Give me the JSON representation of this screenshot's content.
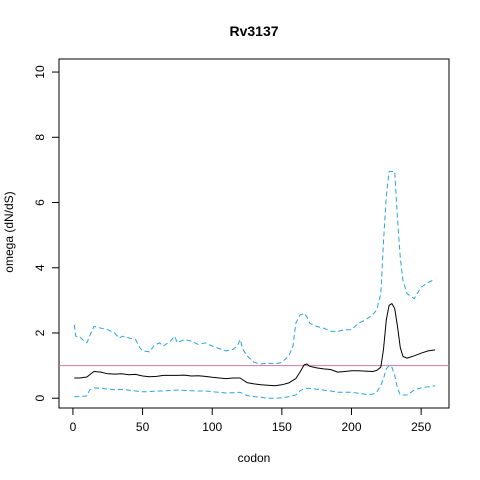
{
  "chart_data": {
    "type": "line",
    "title": "Rv3137",
    "xlabel": "codon",
    "ylabel": "omega (dN/dS)",
    "xlim": [
      -10,
      270
    ],
    "ylim": [
      -0.3,
      10.4
    ],
    "x_ticks": [
      0,
      50,
      100,
      150,
      200,
      250
    ],
    "y_ticks": [
      0,
      2,
      4,
      6,
      8,
      10
    ],
    "grid": false,
    "reference_line": {
      "y": 1,
      "color": "#cc79a7"
    },
    "series": [
      {
        "style": "solid",
        "color": "#000000",
        "points": [
          [
            1,
            0.62
          ],
          [
            5,
            0.62
          ],
          [
            10,
            0.65
          ],
          [
            15,
            0.82
          ],
          [
            20,
            0.8
          ],
          [
            25,
            0.75
          ],
          [
            30,
            0.74
          ],
          [
            35,
            0.75
          ],
          [
            40,
            0.72
          ],
          [
            45,
            0.73
          ],
          [
            50,
            0.68
          ],
          [
            55,
            0.66
          ],
          [
            60,
            0.67
          ],
          [
            65,
            0.7
          ],
          [
            70,
            0.7
          ],
          [
            75,
            0.7
          ],
          [
            80,
            0.71
          ],
          [
            85,
            0.68
          ],
          [
            90,
            0.69
          ],
          [
            95,
            0.67
          ],
          [
            100,
            0.64
          ],
          [
            105,
            0.62
          ],
          [
            110,
            0.6
          ],
          [
            115,
            0.62
          ],
          [
            120,
            0.62
          ],
          [
            125,
            0.48
          ],
          [
            130,
            0.44
          ],
          [
            135,
            0.41
          ],
          [
            140,
            0.4
          ],
          [
            145,
            0.38
          ],
          [
            150,
            0.41
          ],
          [
            155,
            0.47
          ],
          [
            160,
            0.6
          ],
          [
            163,
            0.8
          ],
          [
            166,
            1.02
          ],
          [
            168,
            1.05
          ],
          [
            170,
            0.98
          ],
          [
            175,
            0.93
          ],
          [
            180,
            0.9
          ],
          [
            185,
            0.88
          ],
          [
            190,
            0.8
          ],
          [
            195,
            0.82
          ],
          [
            200,
            0.84
          ],
          [
            205,
            0.84
          ],
          [
            210,
            0.83
          ],
          [
            215,
            0.82
          ],
          [
            218,
            0.85
          ],
          [
            221,
            0.95
          ],
          [
            223,
            1.5
          ],
          [
            225,
            2.4
          ],
          [
            227,
            2.85
          ],
          [
            229,
            2.9
          ],
          [
            231,
            2.75
          ],
          [
            233,
            2.2
          ],
          [
            235,
            1.55
          ],
          [
            237,
            1.28
          ],
          [
            240,
            1.23
          ],
          [
            245,
            1.3
          ],
          [
            250,
            1.38
          ],
          [
            255,
            1.45
          ],
          [
            260,
            1.48
          ]
        ]
      },
      {
        "style": "dashed",
        "color": "#29a3e6",
        "points": [
          [
            1,
            2.25
          ],
          [
            2,
            1.9
          ],
          [
            5,
            1.88
          ],
          [
            8,
            1.75
          ],
          [
            10,
            1.7
          ],
          [
            12,
            1.9
          ],
          [
            15,
            2.2
          ],
          [
            20,
            2.15
          ],
          [
            25,
            2.1
          ],
          [
            30,
            2.0
          ],
          [
            33,
            1.85
          ],
          [
            36,
            1.9
          ],
          [
            40,
            1.85
          ],
          [
            45,
            1.8
          ],
          [
            48,
            1.55
          ],
          [
            50,
            1.45
          ],
          [
            55,
            1.42
          ],
          [
            58,
            1.6
          ],
          [
            62,
            1.7
          ],
          [
            65,
            1.6
          ],
          [
            70,
            1.75
          ],
          [
            73,
            1.9
          ],
          [
            75,
            1.7
          ],
          [
            80,
            1.8
          ],
          [
            85,
            1.75
          ],
          [
            90,
            1.65
          ],
          [
            95,
            1.7
          ],
          [
            100,
            1.6
          ],
          [
            105,
            1.52
          ],
          [
            110,
            1.45
          ],
          [
            115,
            1.5
          ],
          [
            118,
            1.6
          ],
          [
            120,
            1.8
          ],
          [
            122,
            1.5
          ],
          [
            125,
            1.3
          ],
          [
            130,
            1.1
          ],
          [
            135,
            1.05
          ],
          [
            140,
            1.08
          ],
          [
            145,
            1.05
          ],
          [
            150,
            1.1
          ],
          [
            155,
            1.3
          ],
          [
            158,
            1.6
          ],
          [
            160,
            2.3
          ],
          [
            163,
            2.55
          ],
          [
            166,
            2.6
          ],
          [
            168,
            2.5
          ],
          [
            170,
            2.3
          ],
          [
            175,
            2.2
          ],
          [
            180,
            2.15
          ],
          [
            185,
            2.05
          ],
          [
            190,
            2.05
          ],
          [
            195,
            2.1
          ],
          [
            200,
            2.1
          ],
          [
            205,
            2.3
          ],
          [
            210,
            2.4
          ],
          [
            215,
            2.55
          ],
          [
            218,
            2.7
          ],
          [
            221,
            3.2
          ],
          [
            223,
            4.8
          ],
          [
            225,
            6.2
          ],
          [
            227,
            6.95
          ],
          [
            231,
            6.95
          ],
          [
            233,
            5.5
          ],
          [
            235,
            4.3
          ],
          [
            237,
            3.6
          ],
          [
            240,
            3.2
          ],
          [
            245,
            3.05
          ],
          [
            250,
            3.4
          ],
          [
            255,
            3.55
          ],
          [
            260,
            3.65
          ]
        ]
      },
      {
        "style": "dashed",
        "color": "#29a3e6",
        "points": [
          [
            1,
            0.05
          ],
          [
            5,
            0.05
          ],
          [
            10,
            0.07
          ],
          [
            12,
            0.25
          ],
          [
            15,
            0.32
          ],
          [
            20,
            0.3
          ],
          [
            25,
            0.28
          ],
          [
            30,
            0.26
          ],
          [
            35,
            0.27
          ],
          [
            40,
            0.25
          ],
          [
            45,
            0.22
          ],
          [
            50,
            0.2
          ],
          [
            55,
            0.2
          ],
          [
            60,
            0.22
          ],
          [
            65,
            0.22
          ],
          [
            70,
            0.24
          ],
          [
            75,
            0.25
          ],
          [
            80,
            0.24
          ],
          [
            85,
            0.23
          ],
          [
            90,
            0.22
          ],
          [
            95,
            0.22
          ],
          [
            100,
            0.2
          ],
          [
            105,
            0.18
          ],
          [
            110,
            0.16
          ],
          [
            115,
            0.17
          ],
          [
            120,
            0.18
          ],
          [
            125,
            0.08
          ],
          [
            130,
            0.05
          ],
          [
            135,
            0.03
          ],
          [
            140,
            0.0
          ],
          [
            145,
            0.0
          ],
          [
            150,
            0.01
          ],
          [
            155,
            0.05
          ],
          [
            160,
            0.1
          ],
          [
            163,
            0.22
          ],
          [
            166,
            0.3
          ],
          [
            170,
            0.3
          ],
          [
            175,
            0.28
          ],
          [
            180,
            0.25
          ],
          [
            185,
            0.22
          ],
          [
            190,
            0.18
          ],
          [
            195,
            0.18
          ],
          [
            200,
            0.18
          ],
          [
            205,
            0.15
          ],
          [
            210,
            0.12
          ],
          [
            215,
            0.12
          ],
          [
            218,
            0.18
          ],
          [
            221,
            0.4
          ],
          [
            223,
            0.6
          ],
          [
            225,
            0.9
          ],
          [
            227,
            1.0
          ],
          [
            229,
            0.95
          ],
          [
            231,
            0.7
          ],
          [
            233,
            0.3
          ],
          [
            235,
            0.1
          ],
          [
            240,
            0.1
          ],
          [
            245,
            0.25
          ],
          [
            250,
            0.32
          ],
          [
            255,
            0.35
          ],
          [
            260,
            0.38
          ]
        ]
      }
    ]
  }
}
